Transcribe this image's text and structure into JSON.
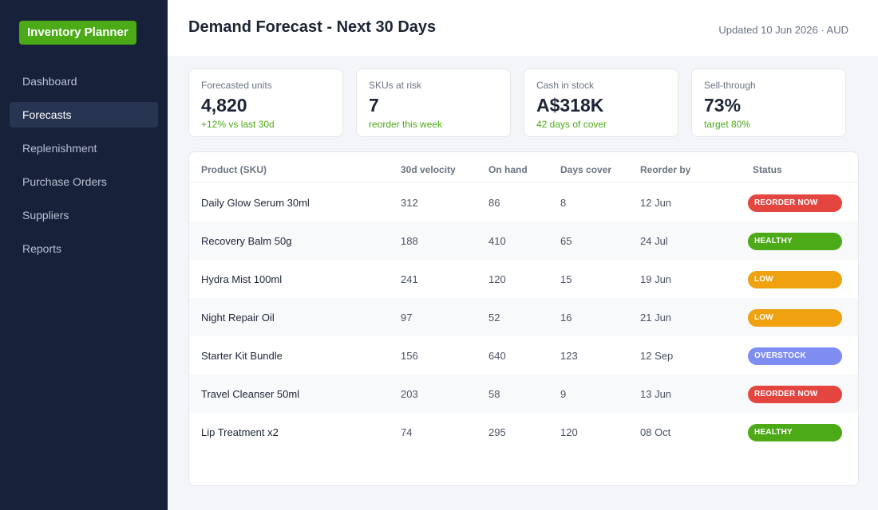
{
  "app": {
    "brand": "Inventory Planner"
  },
  "sidebar": {
    "items": [
      {
        "label": "Dashboard",
        "active": false
      },
      {
        "label": "Forecasts",
        "active": true
      },
      {
        "label": "Replenishment",
        "active": false
      },
      {
        "label": "Purchase Orders",
        "active": false
      },
      {
        "label": "Suppliers",
        "active": false
      },
      {
        "label": "Reports",
        "active": false
      }
    ]
  },
  "header": {
    "title": "Demand Forecast - Next 30 Days",
    "updated": "Updated 10 Jun 2026 · AUD"
  },
  "kpis": [
    {
      "label": "Forecasted units",
      "value": "4,820",
      "sub": "+12% vs last 30d"
    },
    {
      "label": "SKUs at risk",
      "value": "7",
      "sub": "reorder this week"
    },
    {
      "label": "Cash in stock",
      "value": "A$318K",
      "sub": "42 days of cover"
    },
    {
      "label": "Sell-through",
      "value": "73%",
      "sub": "target 80%"
    }
  ],
  "table": {
    "columns": [
      "Product (SKU)",
      "30d velocity",
      "On hand",
      "Days cover",
      "Reorder by",
      "Status"
    ],
    "rows": [
      {
        "product": "Daily Glow Serum 30ml",
        "velocity": "312",
        "on_hand": "86",
        "days_cover": "8",
        "reorder_by": "12 Jun",
        "status": "REORDER NOW"
      },
      {
        "product": "Recovery Balm 50g",
        "velocity": "188",
        "on_hand": "410",
        "days_cover": "65",
        "reorder_by": "24 Jul",
        "status": "HEALTHY"
      },
      {
        "product": "Hydra Mist 100ml",
        "velocity": "241",
        "on_hand": "120",
        "days_cover": "15",
        "reorder_by": "19 Jun",
        "status": "LOW"
      },
      {
        "product": "Night Repair Oil",
        "velocity": "97",
        "on_hand": "52",
        "days_cover": "16",
        "reorder_by": "21 Jun",
        "status": "LOW"
      },
      {
        "product": "Starter Kit Bundle",
        "velocity": "156",
        "on_hand": "640",
        "days_cover": "123",
        "reorder_by": "12 Sep",
        "status": "OVERSTOCK"
      },
      {
        "product": "Travel Cleanser 50ml",
        "velocity": "203",
        "on_hand": "58",
        "days_cover": "9",
        "reorder_by": "13 Jun",
        "status": "REORDER NOW"
      },
      {
        "product": "Lip Treatment x2",
        "velocity": "74",
        "on_hand": "295",
        "days_cover": "120",
        "reorder_by": "08 Oct",
        "status": "HEALTHY"
      }
    ]
  },
  "colors": {
    "brand": "#4caa16",
    "sidebar_bg": "#17223a",
    "status": {
      "REORDER NOW": "#e5453f",
      "HEALTHY": "#4caa16",
      "LOW": "#f0a10f",
      "OVERSTOCK": "#7f8cf2"
    }
  }
}
